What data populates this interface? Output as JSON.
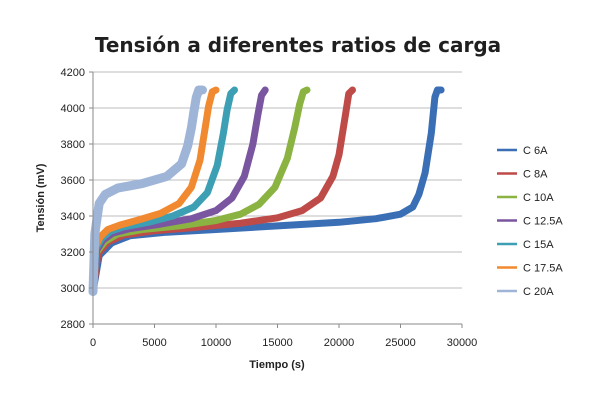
{
  "chart_data": {
    "type": "line",
    "title": "Tensión a diferentes ratios de carga",
    "xlabel": "Tiempo (s)",
    "ylabel": "Tensión (mV)",
    "xlim": [
      0,
      30000
    ],
    "ylim": [
      2800,
      4200
    ],
    "xticks": [
      0,
      5000,
      10000,
      15000,
      20000,
      25000,
      30000
    ],
    "yticks": [
      2800,
      3000,
      3200,
      3400,
      3600,
      3800,
      4000,
      4200
    ],
    "grid": "horizontal",
    "legend_position": "right",
    "series": [
      {
        "name": "C 6A",
        "color": "#3b6fb5",
        "x": [
          0,
          500,
          1500,
          3000,
          6000,
          10000,
          15000,
          20000,
          23000,
          25000,
          26000,
          26500,
          27000,
          27500,
          27800,
          28000,
          28300
        ],
        "y": [
          2980,
          3180,
          3250,
          3290,
          3310,
          3325,
          3345,
          3365,
          3385,
          3410,
          3450,
          3520,
          3640,
          3860,
          4060,
          4100,
          4100
        ]
      },
      {
        "name": "C 8A",
        "color": "#be4b48",
        "x": [
          0,
          400,
          1200,
          2500,
          5000,
          8000,
          12000,
          15000,
          17000,
          18500,
          19500,
          20000,
          20500,
          20800,
          21100
        ],
        "y": [
          2980,
          3190,
          3255,
          3295,
          3318,
          3335,
          3360,
          3390,
          3430,
          3500,
          3620,
          3740,
          3950,
          4080,
          4100
        ]
      },
      {
        "name": "C 10A",
        "color": "#8bb342",
        "x": [
          0,
          300,
          1000,
          2000,
          4000,
          7000,
          10000,
          12000,
          13500,
          14800,
          15800,
          16400,
          16800,
          17100,
          17400
        ],
        "y": [
          2980,
          3200,
          3260,
          3300,
          3325,
          3345,
          3375,
          3410,
          3465,
          3560,
          3720,
          3890,
          4020,
          4090,
          4100
        ]
      },
      {
        "name": "C 12.5A",
        "color": "#7a56a0",
        "x": [
          0,
          300,
          800,
          1600,
          3000,
          5500,
          8000,
          10000,
          11300,
          12300,
          13000,
          13400,
          13700,
          14000
        ],
        "y": [
          2980,
          3210,
          3265,
          3305,
          3330,
          3355,
          3385,
          3430,
          3500,
          3620,
          3800,
          3960,
          4070,
          4100
        ]
      },
      {
        "name": "C 15A",
        "color": "#3d9fb4",
        "x": [
          0,
          250,
          700,
          1400,
          2500,
          4500,
          6500,
          8200,
          9300,
          10100,
          10600,
          10900,
          11200,
          11500
        ],
        "y": [
          2980,
          3220,
          3275,
          3315,
          3340,
          3365,
          3400,
          3450,
          3530,
          3680,
          3860,
          3990,
          4080,
          4100
        ]
      },
      {
        "name": "C 17.5A",
        "color": "#f0892f",
        "x": [
          0,
          200,
          600,
          1200,
          2200,
          3800,
          5500,
          7000,
          8000,
          8700,
          9100,
          9400,
          9700,
          10000
        ],
        "y": [
          2980,
          3230,
          3285,
          3325,
          3350,
          3380,
          3415,
          3470,
          3560,
          3710,
          3880,
          4010,
          4090,
          4100
        ]
      },
      {
        "name": "C 20A",
        "color": "#9fb5d8",
        "x": [
          0,
          150,
          500,
          1000,
          2000,
          4000,
          6000,
          7200,
          7700,
          8000,
          8200,
          8400,
          8600,
          8900
        ],
        "y": [
          2980,
          3300,
          3470,
          3520,
          3555,
          3580,
          3620,
          3690,
          3790,
          3890,
          3980,
          4060,
          4100,
          4100
        ]
      }
    ]
  }
}
